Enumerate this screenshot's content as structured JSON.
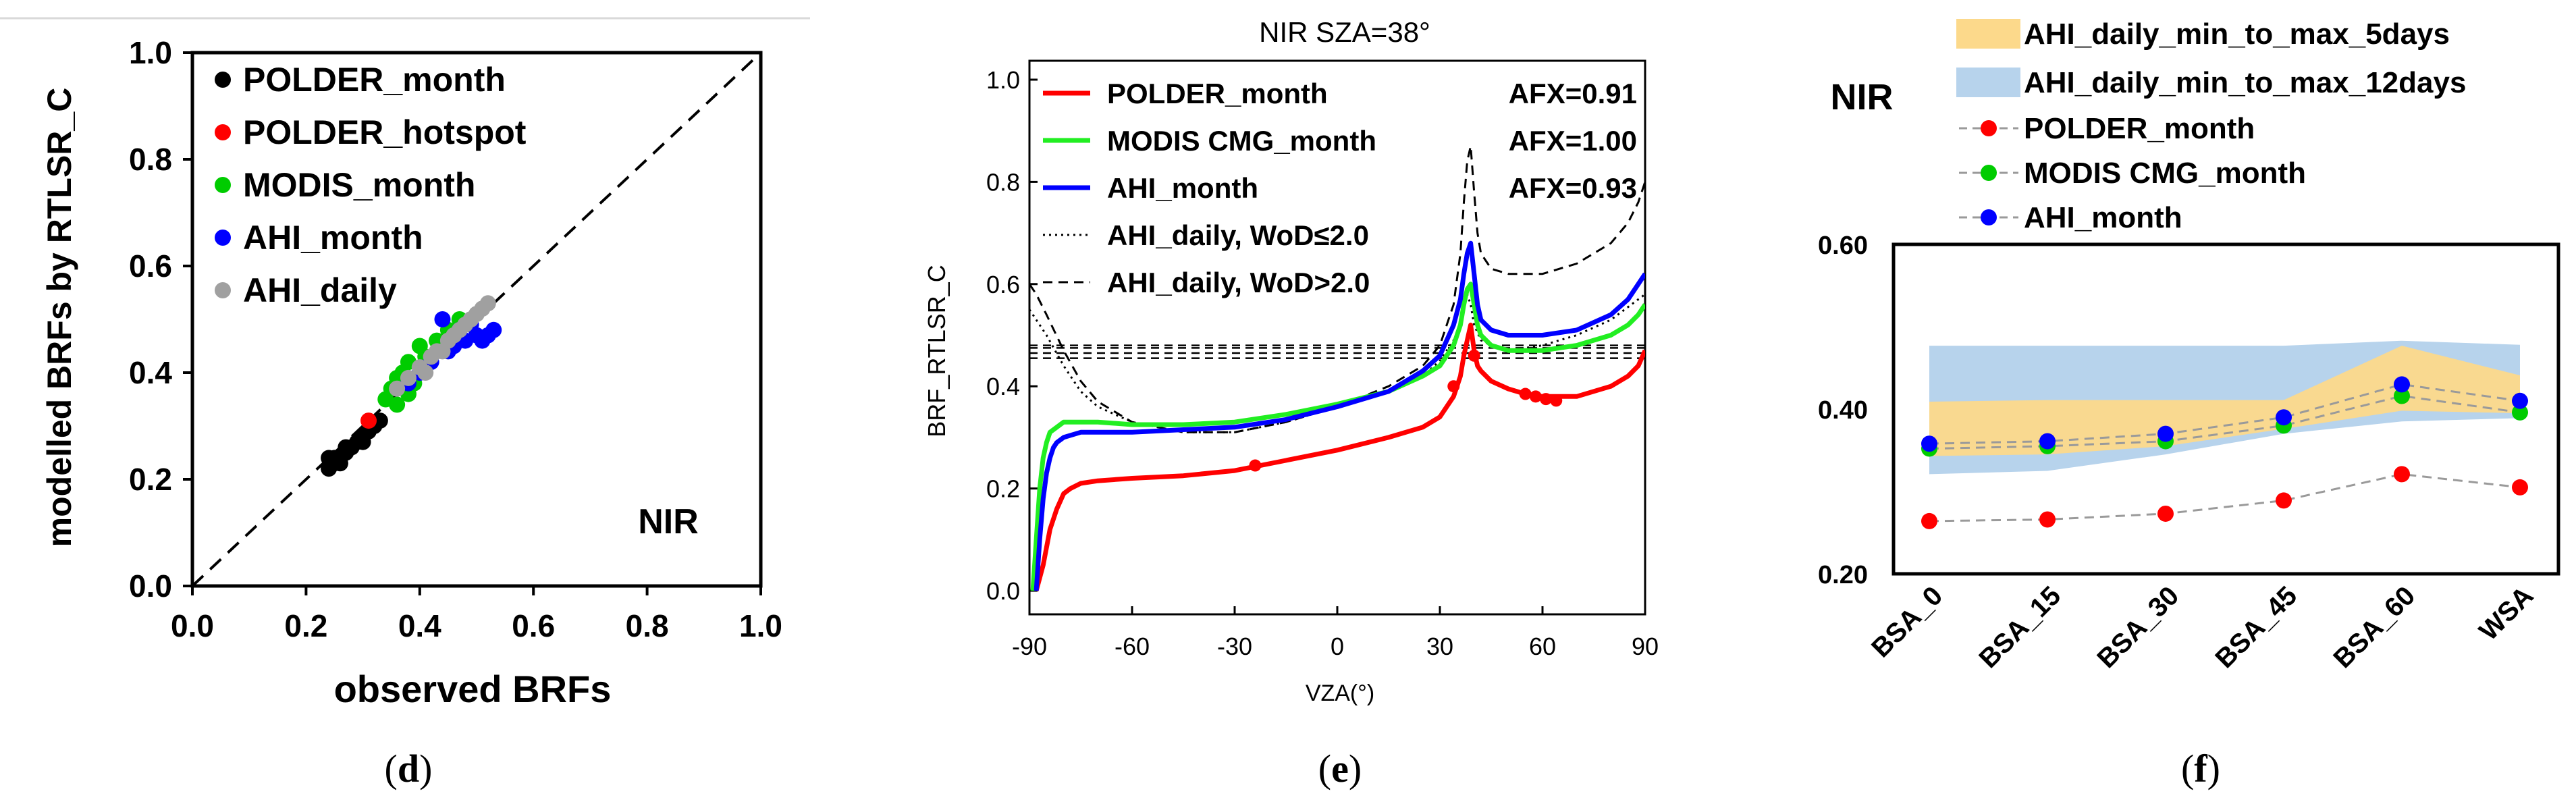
{
  "chart_data": [
    {
      "id": "d",
      "type": "scatter",
      "panel_label": "(d)",
      "panel_label_bold": "d",
      "xlabel": "observed BRFs",
      "ylabel": "modelled BRFs by RTLSR_C",
      "xlim": [
        0.0,
        1.0
      ],
      "ylim": [
        0.0,
        1.0
      ],
      "xticks": [
        "0.0",
        "0.2",
        "0.4",
        "0.6",
        "0.8",
        "1.0"
      ],
      "yticks": [
        "0.0",
        "0.2",
        "0.4",
        "0.6",
        "0.8",
        "1.0"
      ],
      "annotation": "NIR",
      "one_to_one_line": true,
      "legend_position": "top-left",
      "series": [
        {
          "name": "POLDER_month",
          "color": "#000000",
          "points": [
            [
              0.24,
              0.22
            ],
            [
              0.25,
              0.23
            ],
            [
              0.26,
              0.24
            ],
            [
              0.27,
              0.25
            ],
            [
              0.28,
              0.26
            ],
            [
              0.29,
              0.27
            ],
            [
              0.3,
              0.28
            ],
            [
              0.31,
              0.29
            ],
            [
              0.32,
              0.3
            ],
            [
              0.33,
              0.31
            ],
            [
              0.25,
              0.24
            ],
            [
              0.27,
              0.26
            ],
            [
              0.3,
              0.27
            ],
            [
              0.24,
              0.24
            ],
            [
              0.26,
              0.23
            ]
          ]
        },
        {
          "name": "POLDER_hotspot",
          "color": "#ff0000",
          "points": [
            [
              0.31,
              0.31
            ]
          ]
        },
        {
          "name": "MODIS_month",
          "color": "#00cc00",
          "points": [
            [
              0.34,
              0.35
            ],
            [
              0.35,
              0.37
            ],
            [
              0.36,
              0.39
            ],
            [
              0.37,
              0.4
            ],
            [
              0.38,
              0.42
            ],
            [
              0.39,
              0.38
            ],
            [
              0.4,
              0.45
            ],
            [
              0.41,
              0.43
            ],
            [
              0.43,
              0.46
            ],
            [
              0.45,
              0.48
            ],
            [
              0.47,
              0.5
            ],
            [
              0.38,
              0.36
            ],
            [
              0.36,
              0.34
            ]
          ]
        },
        {
          "name": "AHI_month",
          "color": "#0000ff",
          "points": [
            [
              0.38,
              0.38
            ],
            [
              0.4,
              0.4
            ],
            [
              0.42,
              0.42
            ],
            [
              0.44,
              0.5
            ],
            [
              0.45,
              0.44
            ],
            [
              0.47,
              0.48
            ],
            [
              0.48,
              0.46
            ],
            [
              0.5,
              0.47
            ],
            [
              0.51,
              0.46
            ],
            [
              0.52,
              0.47
            ],
            [
              0.53,
              0.48
            ],
            [
              0.49,
              0.49
            ],
            [
              0.46,
              0.45
            ]
          ]
        },
        {
          "name": "AHI_daily",
          "color": "#a0a0a0",
          "points": [
            [
              0.36,
              0.37
            ],
            [
              0.38,
              0.39
            ],
            [
              0.4,
              0.41
            ],
            [
              0.42,
              0.43
            ],
            [
              0.44,
              0.44
            ],
            [
              0.45,
              0.46
            ],
            [
              0.46,
              0.47
            ],
            [
              0.47,
              0.48
            ],
            [
              0.48,
              0.49
            ],
            [
              0.49,
              0.5
            ],
            [
              0.5,
              0.51
            ],
            [
              0.51,
              0.52
            ],
            [
              0.52,
              0.53
            ],
            [
              0.43,
              0.44
            ],
            [
              0.41,
              0.4
            ]
          ]
        }
      ]
    },
    {
      "id": "e",
      "type": "line",
      "panel_label": "(e)",
      "panel_label_bold": "e",
      "title": "NIR  SZA=38°",
      "xlabel": "VZA(°)",
      "ylabel": "BRF_RTLSR_C",
      "xlim": [
        -90,
        90
      ],
      "ylim": [
        0.0,
        1.0
      ],
      "xticks": [
        "-90",
        "-60",
        "-30",
        "0",
        "30",
        "60",
        "90"
      ],
      "yticks": [
        "0.0",
        "0.2",
        "0.4",
        "0.6",
        "0.8",
        "1.0"
      ],
      "legend_position": "top",
      "series": [
        {
          "name": "POLDER_month",
          "color": "#ff0000",
          "style": "solid",
          "afx": "AFX=0.91",
          "x": [
            -88,
            -86,
            -84,
            -82,
            -80,
            -78,
            -75,
            -70,
            -60,
            -45,
            -30,
            -15,
            0,
            15,
            25,
            30,
            34,
            36,
            37,
            38,
            39,
            40,
            41,
            42,
            45,
            50,
            55,
            60,
            70,
            80,
            85,
            88,
            90
          ],
          "y": [
            0.0,
            0.05,
            0.12,
            0.16,
            0.19,
            0.2,
            0.21,
            0.215,
            0.22,
            0.225,
            0.235,
            0.255,
            0.275,
            0.3,
            0.32,
            0.34,
            0.38,
            0.42,
            0.46,
            0.49,
            0.52,
            0.47,
            0.44,
            0.43,
            0.41,
            0.395,
            0.385,
            0.38,
            0.38,
            0.4,
            0.42,
            0.44,
            0.47
          ]
        },
        {
          "name": "MODIS CMG_month",
          "color": "#22ee22",
          "style": "solid",
          "afx": "AFX=1.00",
          "x": [
            -89,
            -88,
            -87,
            -86,
            -85,
            -84,
            -82,
            -80,
            -75,
            -70,
            -60,
            -45,
            -30,
            -15,
            0,
            15,
            25,
            30,
            34,
            36,
            37,
            38,
            39,
            40,
            41,
            42,
            45,
            50,
            60,
            70,
            80,
            85,
            88,
            90
          ],
          "y": [
            0.0,
            0.1,
            0.2,
            0.26,
            0.29,
            0.31,
            0.32,
            0.33,
            0.33,
            0.33,
            0.325,
            0.325,
            0.33,
            0.345,
            0.365,
            0.39,
            0.42,
            0.44,
            0.48,
            0.52,
            0.56,
            0.59,
            0.6,
            0.56,
            0.52,
            0.5,
            0.48,
            0.47,
            0.47,
            0.48,
            0.5,
            0.52,
            0.54,
            0.56
          ]
        },
        {
          "name": "AHI_month",
          "color": "#0000ff",
          "style": "solid",
          "afx": "AFX=0.93",
          "x": [
            -88,
            -87,
            -86,
            -85,
            -84,
            -83,
            -82,
            -80,
            -75,
            -70,
            -60,
            -45,
            -30,
            -15,
            0,
            15,
            25,
            30,
            34,
            36,
            37,
            38,
            39,
            40,
            41,
            42,
            45,
            50,
            60,
            70,
            80,
            85,
            88,
            90
          ],
          "y": [
            0.0,
            0.1,
            0.18,
            0.23,
            0.26,
            0.28,
            0.29,
            0.3,
            0.31,
            0.31,
            0.31,
            0.315,
            0.32,
            0.335,
            0.36,
            0.39,
            0.43,
            0.46,
            0.52,
            0.57,
            0.62,
            0.66,
            0.68,
            0.62,
            0.56,
            0.53,
            0.51,
            0.5,
            0.5,
            0.51,
            0.54,
            0.57,
            0.6,
            0.62
          ]
        },
        {
          "name": "AHI_daily, WoD≤2.0",
          "color": "#000000",
          "style": "dotted",
          "x": [
            -90,
            -85,
            -80,
            -75,
            -70,
            -60,
            -45,
            -30,
            -15,
            0,
            15,
            25,
            30,
            35,
            37,
            38,
            39,
            40,
            42,
            45,
            50,
            60,
            70,
            80,
            90
          ],
          "y": [
            0.55,
            0.5,
            0.44,
            0.39,
            0.36,
            0.33,
            0.31,
            0.31,
            0.33,
            0.36,
            0.39,
            0.42,
            0.45,
            0.5,
            0.55,
            0.58,
            0.56,
            0.52,
            0.49,
            0.48,
            0.47,
            0.48,
            0.5,
            0.53,
            0.58
          ]
        },
        {
          "name": "AHI_daily, WoD>2.0",
          "color": "#000000",
          "style": "dashed",
          "x": [
            -90,
            -88,
            -85,
            -80,
            -75,
            -70,
            -60,
            -45,
            -30,
            -15,
            0,
            15,
            25,
            30,
            34,
            36,
            37,
            38,
            39,
            40,
            41,
            42,
            45,
            50,
            60,
            70,
            80,
            85,
            88,
            90
          ],
          "y": [
            0.6,
            0.58,
            0.54,
            0.47,
            0.41,
            0.37,
            0.33,
            0.31,
            0.31,
            0.33,
            0.36,
            0.4,
            0.44,
            0.48,
            0.56,
            0.66,
            0.76,
            0.84,
            0.87,
            0.78,
            0.7,
            0.66,
            0.63,
            0.62,
            0.62,
            0.64,
            0.68,
            0.72,
            0.76,
            0.8
          ]
        }
      ],
      "flat_lines_y": [
        0.455,
        0.465,
        0.475,
        0.48
      ],
      "red_markers": [
        [
          -24,
          0.245
        ],
        [
          34,
          0.4
        ],
        [
          40,
          0.46
        ],
        [
          55,
          0.385
        ],
        [
          58,
          0.38
        ],
        [
          61,
          0.375
        ],
        [
          64,
          0.372
        ]
      ]
    },
    {
      "id": "f",
      "type": "line",
      "panel_label": "(f)",
      "panel_label_bold": "f",
      "annotation": "NIR",
      "categories": [
        "BSA_0",
        "BSA_15",
        "BSA_30",
        "BSA_45",
        "BSA_60",
        "WSA"
      ],
      "ylim": [
        0.2,
        0.6
      ],
      "yticks": [
        "0.20",
        "0.40",
        "0.60"
      ],
      "bands": [
        {
          "name": "AHI_daily_min_to_max_5days",
          "color": "#fcd98b",
          "low": [
            0.343,
            0.345,
            0.355,
            0.376,
            0.398,
            0.395
          ],
          "high": [
            0.409,
            0.411,
            0.411,
            0.411,
            0.477,
            0.441
          ]
        },
        {
          "name": "AHI_daily_min_to_max_12days",
          "color": "#b7d3ec",
          "low": [
            0.321,
            0.325,
            0.345,
            0.37,
            0.385,
            0.389
          ],
          "high": [
            0.477,
            0.477,
            0.477,
            0.477,
            0.483,
            0.478
          ]
        }
      ],
      "series": [
        {
          "name": "POLDER_month",
          "color": "#ff0000",
          "values": [
            0.264,
            0.266,
            0.273,
            0.289,
            0.321,
            0.305
          ]
        },
        {
          "name": "MODIS CMG_month",
          "color": "#00cc00",
          "values": [
            0.352,
            0.355,
            0.361,
            0.38,
            0.416,
            0.396
          ]
        },
        {
          "name": "AHI_month",
          "color": "#0000ff",
          "values": [
            0.358,
            0.361,
            0.37,
            0.39,
            0.43,
            0.41
          ]
        }
      ]
    }
  ]
}
